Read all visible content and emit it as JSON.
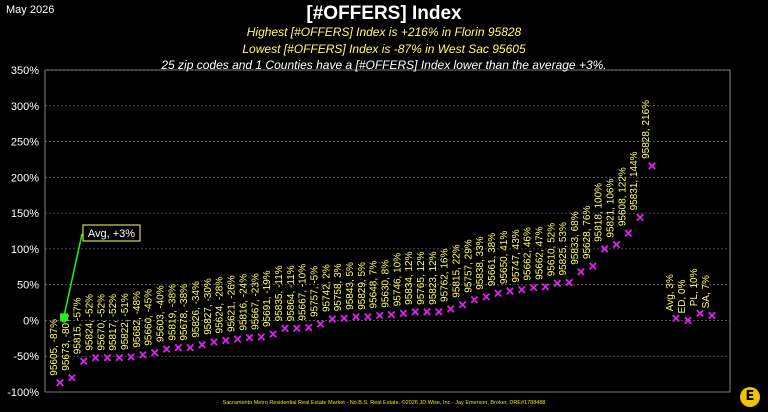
{
  "header": {
    "date": "May 2026",
    "title": "[#OFFERS] Index",
    "subtitle_high": "Highest [#OFFERS] Index is +216% in Florin 95828",
    "subtitle_low": "Lowest [#OFFERS] Index is -87% in West Sac 95605",
    "subtitle_count": "25 zip codes and 1 Counties have a [#OFFERS] Index lower than the average +3%."
  },
  "footer": "Sacramento Metro Residential Real Estate Market - No.B.S. Real Estate. ©2026 JD Wise, Inc - Jay Emerson, Broker, DRE#1788488",
  "colors": {
    "marker": "#dd22ee",
    "label": "#ffff66",
    "avg_arrow": "#22ee22",
    "grid": "#666666",
    "background": "#000000"
  },
  "chart_data": {
    "type": "scatter",
    "ylim": [
      -100,
      350
    ],
    "yticks": [
      "350%",
      "300%",
      "250%",
      "200%",
      "150%",
      "100%",
      "50%",
      "0%",
      "-50%",
      "-100%"
    ],
    "ytick_values": [
      350,
      300,
      250,
      200,
      150,
      100,
      50,
      0,
      -50,
      -100
    ],
    "grid": true,
    "annotation": {
      "text": "Avg, +3%",
      "value": 3
    },
    "points": [
      {
        "label": "95605, -87%",
        "value": -87
      },
      {
        "label": "95673, -80%",
        "value": -80
      },
      {
        "label": "95815, -57%",
        "value": -57
      },
      {
        "label": "95824, -52%",
        "value": -52
      },
      {
        "label": "95670, -52%",
        "value": -52
      },
      {
        "label": "95817, -52%",
        "value": -52
      },
      {
        "label": "95822, -51%",
        "value": -51
      },
      {
        "label": "95682, -48%",
        "value": -48
      },
      {
        "label": "95660, -45%",
        "value": -45
      },
      {
        "label": "95603, -40%",
        "value": -40
      },
      {
        "label": "95819, -38%",
        "value": -38
      },
      {
        "label": "95678, -38%",
        "value": -38
      },
      {
        "label": "95826, -34%",
        "value": -34
      },
      {
        "label": "95827, -30%",
        "value": -30
      },
      {
        "label": "95624, -28%",
        "value": -28
      },
      {
        "label": "95621, -26%",
        "value": -26
      },
      {
        "label": "95816, -24%",
        "value": -24
      },
      {
        "label": "95667, -23%",
        "value": -23
      },
      {
        "label": "95691, -19%",
        "value": -19
      },
      {
        "label": "95835, -11%",
        "value": -11
      },
      {
        "label": "95864, -11%",
        "value": -11
      },
      {
        "label": "95667, -10%",
        "value": -10
      },
      {
        "label": "95757, -5%",
        "value": -5
      },
      {
        "label": "95742, 2%",
        "value": 2
      },
      {
        "label": "95758, 3%",
        "value": 3
      },
      {
        "label": "95843, 5%",
        "value": 5
      },
      {
        "label": "95829, 5%",
        "value": 5
      },
      {
        "label": "95648, 7%",
        "value": 7
      },
      {
        "label": "95630, 8%",
        "value": 8
      },
      {
        "label": "95746, 10%",
        "value": 10
      },
      {
        "label": "95834, 12%",
        "value": 12
      },
      {
        "label": "95765, 12%",
        "value": 12
      },
      {
        "label": "95823, 12%",
        "value": 12
      },
      {
        "label": "95762, 16%",
        "value": 16
      },
      {
        "label": "95815, 22%",
        "value": 22
      },
      {
        "label": "95757, 29%",
        "value": 29
      },
      {
        "label": "95838, 33%",
        "value": 33
      },
      {
        "label": "95661, 38%",
        "value": 38
      },
      {
        "label": "95650, 41%",
        "value": 41
      },
      {
        "label": "95747, 43%",
        "value": 43
      },
      {
        "label": "95662, 46%",
        "value": 46
      },
      {
        "label": "95662, 47%",
        "value": 47
      },
      {
        "label": "95610, 52%",
        "value": 52
      },
      {
        "label": "95825, 53%",
        "value": 53
      },
      {
        "label": "95833, 68%",
        "value": 68
      },
      {
        "label": "95628, 76%",
        "value": 76
      },
      {
        "label": "95818, 100%",
        "value": 100
      },
      {
        "label": "95821, 106%",
        "value": 106
      },
      {
        "label": "95608, 122%",
        "value": 122
      },
      {
        "label": "95831, 144%",
        "value": 144
      },
      {
        "label": "95828, 216%",
        "value": 216
      },
      {
        "label": "Avg, 3%",
        "value": 3
      },
      {
        "label": "ED, 0%",
        "value": 0
      },
      {
        "label": "PL, 10%",
        "value": 10
      },
      {
        "label": "SA, 7%",
        "value": 7
      }
    ]
  }
}
